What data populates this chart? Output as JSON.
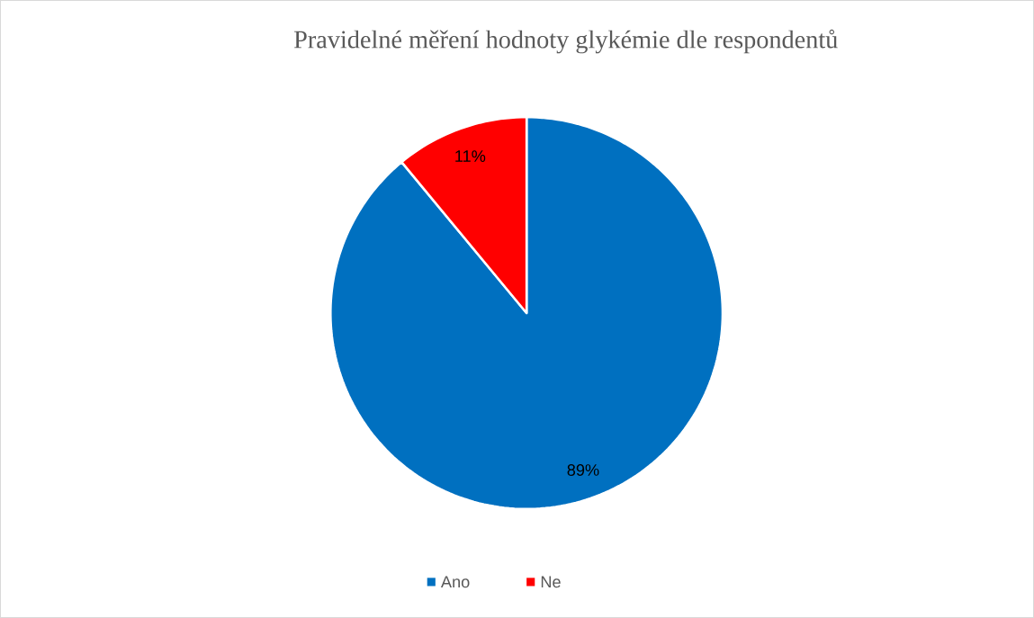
{
  "chart_data": {
    "type": "pie",
    "title": "Pravidelné měření hodnoty glykémie dle respondentů",
    "categories": [
      "Ano",
      "Ne"
    ],
    "values": [
      89,
      11
    ],
    "colors": [
      "#0070c0",
      "#ff0000"
    ],
    "value_labels": [
      "89%",
      "11%"
    ],
    "legend": "bottom"
  }
}
